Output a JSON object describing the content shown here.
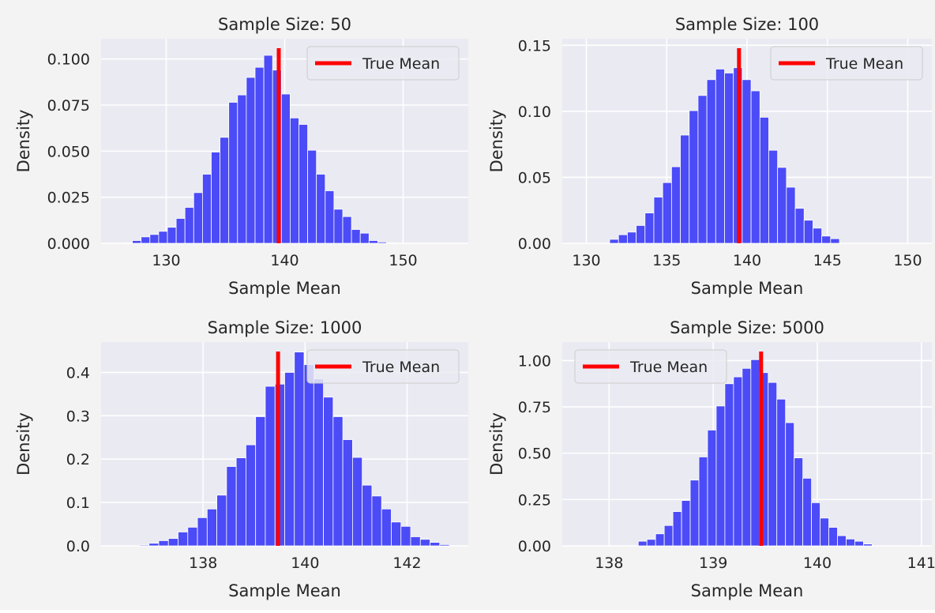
{
  "colors": {
    "figure_background": "#f3f3f3",
    "axes_background": "#eaeaf2",
    "grid": "#ffffff",
    "bar": "#4b4bf7",
    "true_mean_line": "#ff0000",
    "text": "#262626"
  },
  "chart_data": [
    {
      "type": "bar",
      "title": "Sample Size: 50",
      "xlabel": "Sample Mean",
      "ylabel": "Density",
      "xlim": [
        124.5,
        155.5
      ],
      "ylim": [
        0,
        0.111
      ],
      "xticks": [
        130,
        140,
        150
      ],
      "xtick_labels": [
        "130",
        "140",
        "150"
      ],
      "yticks": [
        0,
        0.025,
        0.05,
        0.075,
        0.1
      ],
      "ytick_labels": [
        "0.000",
        "0.025",
        "0.050",
        "0.075",
        "0.100"
      ],
      "grid": true,
      "legend": {
        "placement": "top-right",
        "entries": [
          "True Mean"
        ]
      },
      "true_mean": 139.5,
      "bin_start": 126.4,
      "bin_width": 0.74,
      "values": [
        0.0003,
        0.0015,
        0.0035,
        0.0048,
        0.0065,
        0.0087,
        0.0135,
        0.0195,
        0.0275,
        0.0375,
        0.0495,
        0.0575,
        0.0765,
        0.0805,
        0.09,
        0.0955,
        0.102,
        0.094,
        0.081,
        0.068,
        0.0645,
        0.0505,
        0.0375,
        0.0285,
        0.0185,
        0.0145,
        0.0075,
        0.0055,
        0.0015,
        0.0007,
        0.0003
      ]
    },
    {
      "type": "bar",
      "title": "Sample Size: 100",
      "xlabel": "Sample Mean",
      "ylabel": "Density",
      "xlim": [
        128.5,
        151.5
      ],
      "ylim": [
        0,
        0.155
      ],
      "xticks": [
        130,
        135,
        140,
        145,
        150
      ],
      "xtick_labels": [
        "130",
        "135",
        "140",
        "145",
        "150"
      ],
      "yticks": [
        0,
        0.05,
        0.1,
        0.15
      ],
      "ytick_labels": [
        "0.00",
        "0.05",
        "0.10",
        "0.15"
      ],
      "grid": true,
      "legend": {
        "placement": "top-right",
        "entries": [
          "True Mean"
        ]
      },
      "true_mean": 139.5,
      "bin_start": 131.45,
      "bin_width": 0.55,
      "values": [
        0.003,
        0.0065,
        0.0085,
        0.0135,
        0.023,
        0.035,
        0.046,
        0.058,
        0.082,
        0.1005,
        0.112,
        0.124,
        0.132,
        0.129,
        0.133,
        0.124,
        0.1155,
        0.0955,
        0.0705,
        0.0575,
        0.0425,
        0.0265,
        0.0175,
        0.0115,
        0.0055,
        0.0035
      ]
    },
    {
      "type": "bar",
      "title": "Sample Size: 1000",
      "xlabel": "Sample Mean",
      "ylabel": "Density",
      "xlim": [
        136.0,
        143.2
      ],
      "ylim": [
        0,
        0.47
      ],
      "xticks": [
        138,
        140,
        142
      ],
      "xtick_labels": [
        "138",
        "140",
        "142"
      ],
      "yticks": [
        0,
        0.1,
        0.2,
        0.3,
        0.4
      ],
      "ytick_labels": [
        "0.0",
        "0.1",
        "0.2",
        "0.3",
        "0.4"
      ],
      "grid": true,
      "legend": {
        "placement": "top-right",
        "entries": [
          "True Mean"
        ]
      },
      "true_mean": 139.47,
      "bin_start": 136.75,
      "bin_width": 0.19,
      "values": [
        0.002,
        0.006,
        0.012,
        0.017,
        0.032,
        0.043,
        0.065,
        0.085,
        0.117,
        0.183,
        0.203,
        0.233,
        0.298,
        0.368,
        0.373,
        0.4,
        0.447,
        0.418,
        0.385,
        0.343,
        0.298,
        0.245,
        0.204,
        0.14,
        0.115,
        0.085,
        0.055,
        0.045,
        0.021,
        0.015,
        0.008,
        0.003
      ]
    },
    {
      "type": "bar",
      "title": "Sample Size: 5000",
      "xlabel": "Sample Mean",
      "ylabel": "Density",
      "xlim": [
        137.55,
        141.1
      ],
      "ylim": [
        0,
        1.1
      ],
      "xticks": [
        138,
        139,
        140,
        141
      ],
      "xtick_labels": [
        "138",
        "139",
        "140",
        "141"
      ],
      "yticks": [
        0,
        0.25,
        0.5,
        0.75,
        1.0
      ],
      "ytick_labels": [
        "0.00",
        "0.25",
        "0.50",
        "0.75",
        "1.00"
      ],
      "grid": true,
      "legend": {
        "placement": "top-left",
        "entries": [
          "True Mean"
        ]
      },
      "true_mean": 139.46,
      "bin_start": 138.28,
      "bin_width": 0.0832,
      "values": [
        0.025,
        0.035,
        0.065,
        0.11,
        0.185,
        0.245,
        0.355,
        0.48,
        0.625,
        0.755,
        0.875,
        0.912,
        0.958,
        1.005,
        0.935,
        0.882,
        0.792,
        0.665,
        0.475,
        0.365,
        0.233,
        0.15,
        0.1,
        0.055,
        0.037,
        0.025,
        0.01
      ]
    }
  ]
}
